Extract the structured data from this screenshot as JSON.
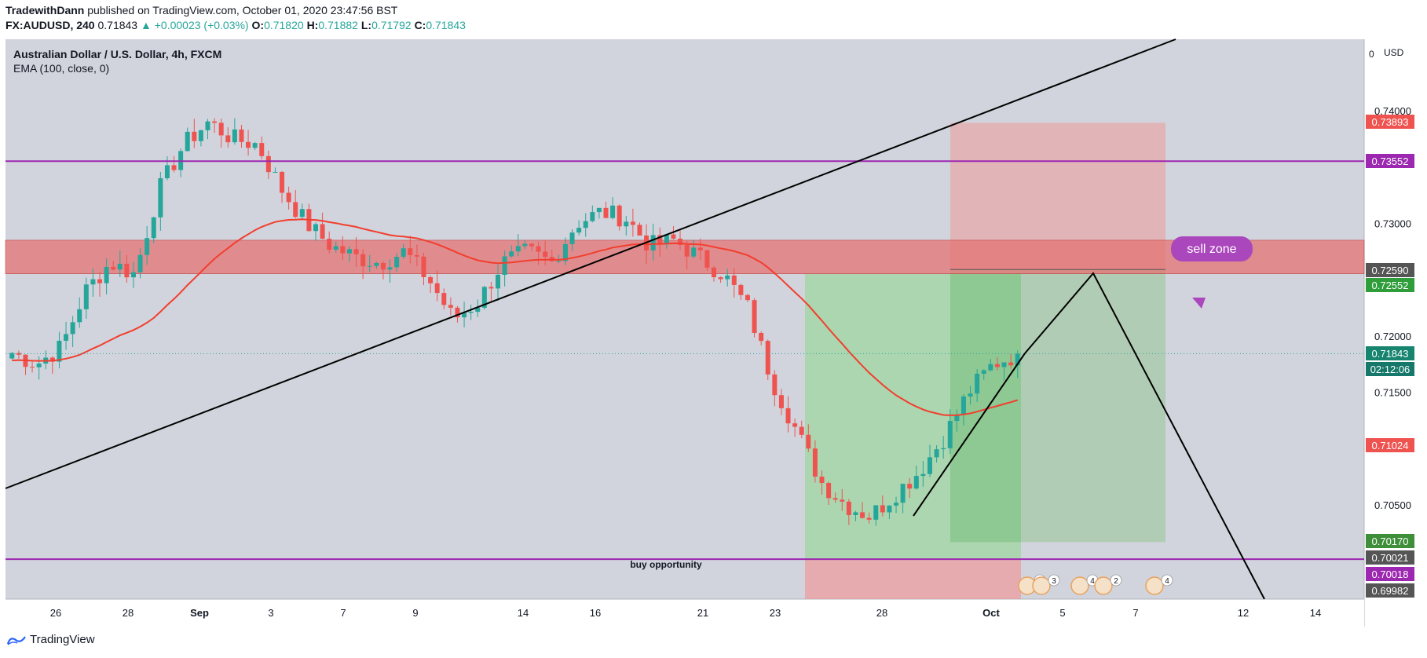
{
  "header": {
    "author": "TradewithDann",
    "published": "published on TradingView.com, October 01, 2020 23:47:56 BST",
    "symbol": "FX:AUDUSD, 240",
    "last": "0.71843",
    "change": "▲ +0.00023 (+0.03%)",
    "o_label": "O:",
    "o": "0.71820",
    "h_label": "H:",
    "h": "0.71882",
    "l_label": "L:",
    "l": "0.71792",
    "c_label": "C:",
    "c": "0.71843"
  },
  "legend": {
    "title": "Australian Dollar / U.S. Dollar, 4h, FXCM",
    "indicator": "EMA (100, close, 0)"
  },
  "footer": {
    "brand": "TradingView"
  },
  "colors": {
    "bull": "#26a69a",
    "bear": "#ef5350",
    "ema": "#f23e2e",
    "purple": "#9c27b0",
    "background": "#d1d4dc",
    "zone_red": "#ef9a9a",
    "zone_green": "#a5d6a7"
  },
  "chart_data": {
    "type": "candlestick",
    "currency": "USD",
    "y_scale_top_label": "0",
    "ylim": [
      0.698,
      0.7448
    ],
    "y_ticks": [
      "0.74000",
      "0.73000",
      "0.72000",
      "0.71500",
      "0.70500"
    ],
    "x_ticks": [
      "26",
      "28",
      "Sep",
      "3",
      "7",
      "9",
      "14",
      "16",
      "21",
      "23",
      "28",
      "Oct",
      "5",
      "7",
      "12",
      "14"
    ],
    "price_labels": [
      {
        "value": "0.73893",
        "role": "position stop"
      },
      {
        "value": "0.73552",
        "role": "horizontal level"
      },
      {
        "value": "0.72590",
        "role": "position entry"
      },
      {
        "value": "0.72552",
        "role": "long target"
      },
      {
        "value": "0.71843",
        "role": "last price"
      },
      {
        "value": "02:12:06",
        "role": "bar countdown"
      },
      {
        "value": "0.71024",
        "role": "position level"
      },
      {
        "value": "0.70170",
        "role": "position target"
      },
      {
        "value": "0.70021",
        "role": "level"
      },
      {
        "value": "0.70018",
        "role": "horizontal level"
      },
      {
        "value": "0.69982",
        "role": "long stop"
      }
    ],
    "horizontal_lines": [
      0.73552,
      0.70018
    ],
    "resistance_zone": [
      0.72552,
      0.7285
    ],
    "annotations": [
      "sell zone",
      "buy opportunity"
    ],
    "event_markers": [
      "6",
      "3",
      "4",
      "2",
      "4"
    ],
    "indicator": "EMA (100, close, 0)",
    "ohlc_close_path": [
      0.7185,
      0.7175,
      0.719,
      0.724,
      0.7265,
      0.7255,
      0.733,
      0.737,
      0.739,
      0.7375,
      0.737,
      0.733,
      0.73,
      0.728,
      0.727,
      0.7265,
      0.7275,
      0.725,
      0.7215,
      0.723,
      0.7265,
      0.7275,
      0.7265,
      0.73,
      0.731,
      0.7305,
      0.728,
      0.7285,
      0.727,
      0.7255,
      0.7225,
      0.716,
      0.7115,
      0.707,
      0.705,
      0.704,
      0.706,
      0.708,
      0.711,
      0.715,
      0.7175,
      0.7184
    ]
  }
}
